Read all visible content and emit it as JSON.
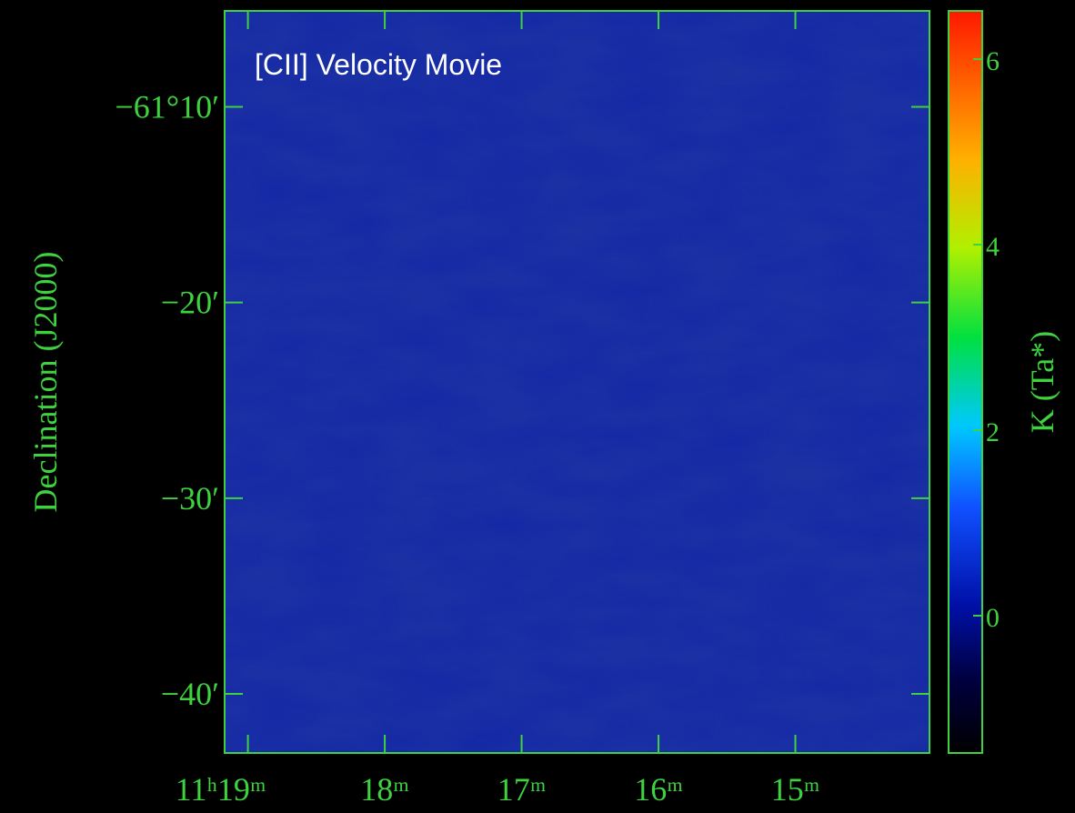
{
  "chart_data": {
    "type": "image",
    "title": "[CII] Velocity Movie",
    "y_label": "Declination (J2000)",
    "colorbar_label": "K (Ta*)",
    "axis_color": "#3fd23f",
    "xlim": [
      19.17,
      14.02
    ],
    "xticks": [
      {
        "value": 19,
        "label": "11ʰ19ᵐ"
      },
      {
        "value": 18,
        "label": "18ᵐ"
      },
      {
        "value": 17,
        "label": "17ᵐ"
      },
      {
        "value": 16,
        "label": "16ᵐ"
      },
      {
        "value": 15,
        "label": "15ᵐ"
      }
    ],
    "ylim": [
      -61.717,
      -61.085
    ],
    "yticks": [
      {
        "value": -61.1667,
        "label": "−61°10′"
      },
      {
        "value": -61.3333,
        "label": "−20′"
      },
      {
        "value": -61.5,
        "label": "−30′"
      },
      {
        "value": -61.6667,
        "label": "−40′"
      }
    ],
    "clim": [
      -1.48,
      6.52
    ],
    "cticks": [
      0,
      2,
      4,
      6
    ]
  }
}
